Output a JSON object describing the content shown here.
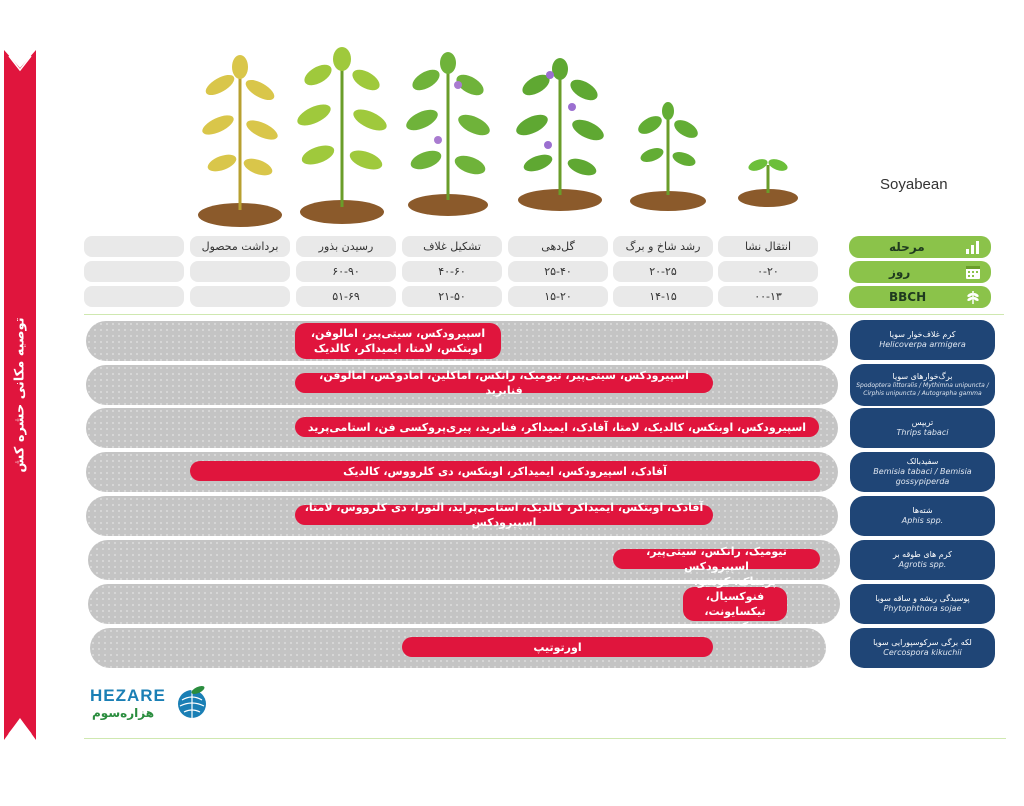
{
  "sidebar": {
    "title": "توصیه مکانی حشره کش",
    "color": "#e0153d"
  },
  "crop_name": "Soyabean",
  "stage_header": {
    "label": "مرحله",
    "icon": "bar-chart-icon"
  },
  "day_header": {
    "label": "روز",
    "icon": "calendar-icon"
  },
  "bbch_header": {
    "label": "BBCH",
    "icon": "plant-stalk-icon"
  },
  "stages": [
    "انتقال نشا",
    "رشد شاخ و برگ",
    "گل‌دهی",
    "تشکیل غلاف",
    "رسیدن بذور",
    "برداشت محصول",
    ""
  ],
  "days": [
    "۰-۲۰",
    "۲۰-۲۵",
    "۲۵-۴۰",
    "۴۰-۶۰",
    "۶۰-۹۰",
    "",
    ""
  ],
  "bbch": [
    "۰۰-۱۳",
    "۱۴-۱۵",
    "۱۵-۲۰",
    "۲۱-۵۰",
    "۵۱-۶۹",
    "",
    ""
  ],
  "pests": [
    {
      "fa": "کرم غلاف‌خوار سویا",
      "sci": "Helicoverpa armigera",
      "products": "اسپیرودکس، سیتی‌پیر، امالوفن، اوبتکس، لامتا، ایمیداکر، کالدیک"
    },
    {
      "fa": "برگ‌خوارهای سویا",
      "sci": "Spodoptera littoralis / Mythimna unipuncta / Cirphis unipuncta / Autographa gamma",
      "products": "اسپیرودکس، سیتی‌پیر، تیومیک، رانکس، اماکلین، امادوکس، امالوفن، فنابرید"
    },
    {
      "fa": "تریپس",
      "sci": "Thrips tabaci",
      "products": "اسپیرودکس، اوبتکس، کالدیک، لامتا، آفادک، ایمیداکر، فنابرید، پیری‌پروکسی فن، استامی‌پرید"
    },
    {
      "fa": "سفیدبالک",
      "sci": "Bemisia tabaci / Bemisia gossypiperda",
      "products": "آفادک، اسپیرودکس، ایمیداکر، اوبتکس، دی کلرووس، کالدیک"
    },
    {
      "fa": "شته‌ها",
      "sci": "Aphis spp.",
      "products": "آفادک، اوبتکس، ایمیداکر، کالدیک، استامی‌پراید، التورا، دی کلرووس، لامتا، اسپیرودکس"
    },
    {
      "fa": "کرم های طوقه بر",
      "sci": "Agrotis spp.",
      "products": "تیومیک، رانکس، سیتی‌پیر، اسپیرودکس"
    },
    {
      "fa": "پوسیدگی ریشه و ساقه سویا",
      "sci": "Phytophthora sojae",
      "products": "پریماک، کوهیو، فنوکسیال، تیکسایونت، کیش"
    },
    {
      "fa": "لکه برگی سرکوسپورایی سویا",
      "sci": "Cercospora kikuchii",
      "products": "اورتوتیپ"
    }
  ],
  "logo": {
    "en": "HEZARE",
    "fa": "هزاره‌سوم"
  },
  "colors": {
    "accent_red": "#e0153d",
    "pest_blue": "#1f4576",
    "header_green": "#8bc34a"
  }
}
